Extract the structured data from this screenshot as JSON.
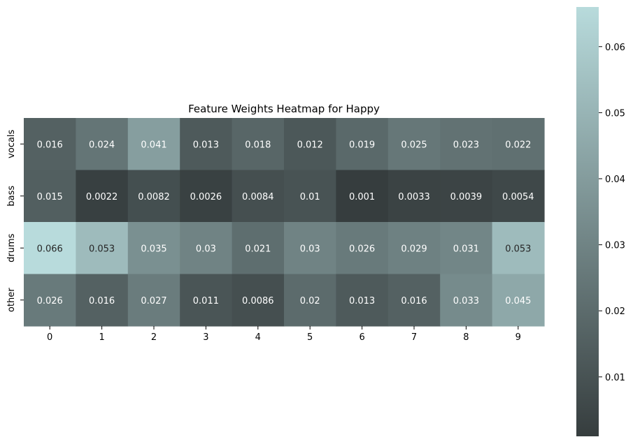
{
  "chart_data": {
    "type": "heatmap",
    "title": "Feature Weights Heatmap for Happy",
    "x_categories": [
      "0",
      "1",
      "2",
      "3",
      "4",
      "5",
      "6",
      "7",
      "8",
      "9"
    ],
    "y_categories": [
      "vocals",
      "bass",
      "drums",
      "other"
    ],
    "values": [
      [
        0.016,
        0.024,
        0.041,
        0.013,
        0.018,
        0.012,
        0.019,
        0.025,
        0.023,
        0.022
      ],
      [
        0.015,
        0.0022,
        0.0082,
        0.0026,
        0.0084,
        0.01,
        0.001,
        0.0033,
        0.0039,
        0.0054
      ],
      [
        0.066,
        0.053,
        0.035,
        0.03,
        0.021,
        0.03,
        0.026,
        0.029,
        0.031,
        0.053
      ],
      [
        0.026,
        0.016,
        0.027,
        0.011,
        0.0086,
        0.02,
        0.013,
        0.016,
        0.033,
        0.045
      ]
    ],
    "labels": [
      [
        "0.016",
        "0.024",
        "0.041",
        "0.013",
        "0.018",
        "0.012",
        "0.019",
        "0.025",
        "0.023",
        "0.022"
      ],
      [
        "0.015",
        "0.0022",
        "0.0082",
        "0.0026",
        "0.0084",
        "0.01",
        "0.001",
        "0.0033",
        "0.0039",
        "0.0054"
      ],
      [
        "0.066",
        "0.053",
        "0.035",
        "0.03",
        "0.021",
        "0.03",
        "0.026",
        "0.029",
        "0.031",
        "0.053"
      ],
      [
        "0.026",
        "0.016",
        "0.027",
        "0.011",
        "0.0086",
        "0.02",
        "0.013",
        "0.016",
        "0.033",
        "0.045"
      ]
    ],
    "colorbar": {
      "range": [
        0.001,
        0.066
      ],
      "ticks": [
        0.01,
        0.02,
        0.03,
        0.04,
        0.05,
        0.06
      ],
      "tick_labels": [
        "0.01",
        "0.02",
        "0.03",
        "0.04",
        "0.05",
        "0.06"
      ],
      "colors": {
        "low": "#363d3e",
        "high": "#b8dbdc"
      }
    },
    "text_colors": {
      "light": "#ffffff",
      "dark": "#262626"
    }
  }
}
